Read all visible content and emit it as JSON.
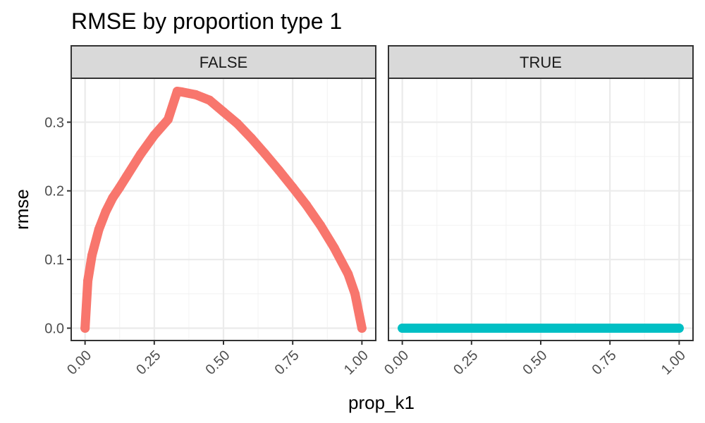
{
  "chart_data": {
    "type": "scatter",
    "title": "RMSE by proportion type 1",
    "xlabel": "prop_k1",
    "ylabel": "rmse",
    "xlim": [
      -0.05,
      1.05
    ],
    "ylim": [
      -0.018,
      0.364
    ],
    "x_ticks": [
      "0.00",
      "0.25",
      "0.50",
      "0.75",
      "1.00"
    ],
    "x_tick_values": [
      0,
      0.25,
      0.5,
      0.75,
      1.0
    ],
    "y_ticks": [
      "0.0",
      "0.1",
      "0.2",
      "0.3"
    ],
    "y_tick_values": [
      0,
      0.1,
      0.2,
      0.3
    ],
    "grid": true,
    "legend": "none",
    "facets": [
      {
        "label": "FALSE",
        "color": "#F8766D",
        "x": [
          0,
          0.01,
          0.025,
          0.05,
          0.075,
          0.1,
          0.125,
          0.15,
          0.2,
          0.25,
          0.3,
          0.333,
          0.35,
          0.4,
          0.45,
          0.5,
          0.55,
          0.6,
          0.65,
          0.7,
          0.75,
          0.8,
          0.85,
          0.9,
          0.95,
          0.975,
          1.0
        ],
        "y": [
          0,
          0.069,
          0.106,
          0.144,
          0.17,
          0.19,
          0.205,
          0.221,
          0.253,
          0.281,
          0.304,
          0.345,
          0.344,
          0.34,
          0.332,
          0.315,
          0.298,
          0.277,
          0.254,
          0.23,
          0.205,
          0.179,
          0.15,
          0.117,
          0.079,
          0.05,
          0
        ]
      },
      {
        "label": "TRUE",
        "color": "#00BFC4",
        "x": [
          0,
          0.1,
          0.2,
          0.3,
          0.4,
          0.5,
          0.6,
          0.7,
          0.8,
          0.9,
          1.0
        ],
        "y": [
          0,
          0,
          0,
          0,
          0,
          0,
          0,
          0,
          0,
          0,
          0
        ]
      }
    ]
  }
}
